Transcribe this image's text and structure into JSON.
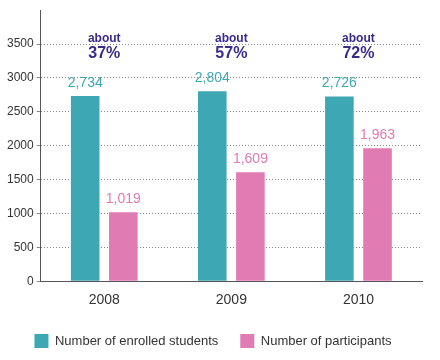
{
  "chart_data": {
    "type": "bar",
    "categories": [
      "2008",
      "2009",
      "2010"
    ],
    "series": [
      {
        "name": "Number of enrolled students",
        "color": "#3ea7b4",
        "values": [
          2734,
          2804,
          2726
        ],
        "value_labels": [
          "2,734",
          "2,804",
          "2,726"
        ]
      },
      {
        "name": "Number of participants",
        "color": "#e07bb4",
        "values": [
          1019,
          1609,
          1963
        ],
        "value_labels": [
          "1,019",
          "1,609",
          "1,963"
        ]
      }
    ],
    "ylim": [
      0,
      4000
    ],
    "yticks": [
      0,
      500,
      1000,
      1500,
      2000,
      2500,
      3000,
      3500
    ],
    "grid": true,
    "legend": "bottom",
    "data_labels": true,
    "annotations": [
      {
        "category": "2008",
        "text": [
          "about",
          "37%"
        ]
      },
      {
        "category": "2009",
        "text": [
          "about",
          "57%"
        ]
      },
      {
        "category": "2010",
        "text": [
          "about",
          "72%"
        ]
      }
    ]
  }
}
